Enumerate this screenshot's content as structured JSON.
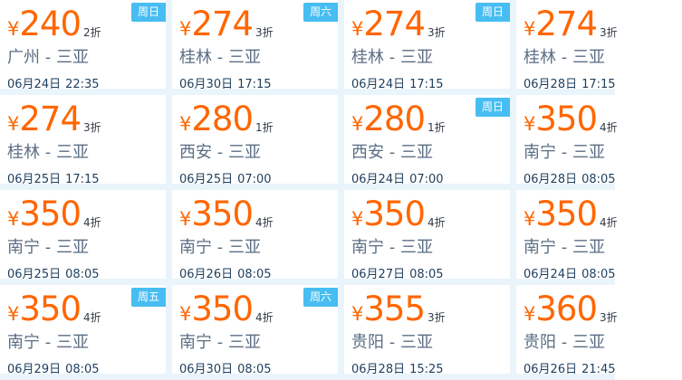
{
  "page": {
    "description": "Flight special-fare deals grid, 4x4 cards, all routes to Sanya",
    "background_color": "#e9f4fb",
    "card_background": "#ffffff"
  },
  "colors": {
    "page_bg": "#e9f4fb",
    "card_bg": "#ffffff",
    "price": "#ff6600",
    "discount": "#333a45",
    "route": "#5b6e84",
    "datetime": "#1d3e5e",
    "badge_bg": "#47bdf2",
    "badge_text": "#ffffff"
  },
  "deals": {
    "currency_symbol": "¥",
    "cards": [
      {
        "price": "240",
        "discount": "2折",
        "route": "广州 - 三亚",
        "date": "06月24日",
        "time": "22:35",
        "badge": "周日"
      },
      {
        "price": "274",
        "discount": "3折",
        "route": "桂林 - 三亚",
        "date": "06月30日",
        "time": "17:15",
        "badge": "周六"
      },
      {
        "price": "274",
        "discount": "3折",
        "route": "桂林 - 三亚",
        "date": "06月24日",
        "time": "17:15",
        "badge": "周日"
      },
      {
        "price": "274",
        "discount": "3折",
        "route": "桂林 - 三亚",
        "date": "06月28日",
        "time": "17:15",
        "badge": ""
      },
      {
        "price": "274",
        "discount": "3折",
        "route": "桂林 - 三亚",
        "date": "06月25日",
        "time": "17:15",
        "badge": ""
      },
      {
        "price": "280",
        "discount": "1折",
        "route": "西安 - 三亚",
        "date": "06月25日",
        "time": "07:00",
        "badge": ""
      },
      {
        "price": "280",
        "discount": "1折",
        "route": "西安 - 三亚",
        "date": "06月24日",
        "time": "07:00",
        "badge": "周日"
      },
      {
        "price": "350",
        "discount": "4折",
        "route": "南宁 - 三亚",
        "date": "06月28日",
        "time": "08:05",
        "badge": ""
      },
      {
        "price": "350",
        "discount": "4折",
        "route": "南宁 - 三亚",
        "date": "06月25日",
        "time": "08:05",
        "badge": ""
      },
      {
        "price": "350",
        "discount": "4折",
        "route": "南宁 - 三亚",
        "date": "06月26日",
        "time": "08:05",
        "badge": ""
      },
      {
        "price": "350",
        "discount": "4折",
        "route": "南宁 - 三亚",
        "date": "06月27日",
        "time": "08:05",
        "badge": ""
      },
      {
        "price": "350",
        "discount": "4折",
        "route": "南宁 - 三亚",
        "date": "06月24日",
        "time": "08:05",
        "badge": ""
      },
      {
        "price": "350",
        "discount": "4折",
        "route": "南宁 - 三亚",
        "date": "06月29日",
        "time": "08:05",
        "badge": "周五"
      },
      {
        "price": "350",
        "discount": "4折",
        "route": "南宁 - 三亚",
        "date": "06月30日",
        "time": "08:05",
        "badge": "周六"
      },
      {
        "price": "355",
        "discount": "3折",
        "route": "贵阳 - 三亚",
        "date": "06月28日",
        "time": "15:25",
        "badge": ""
      },
      {
        "price": "360",
        "discount": "3折",
        "route": "贵阳 - 三亚",
        "date": "06月26日",
        "time": "21:45",
        "badge": ""
      }
    ]
  }
}
